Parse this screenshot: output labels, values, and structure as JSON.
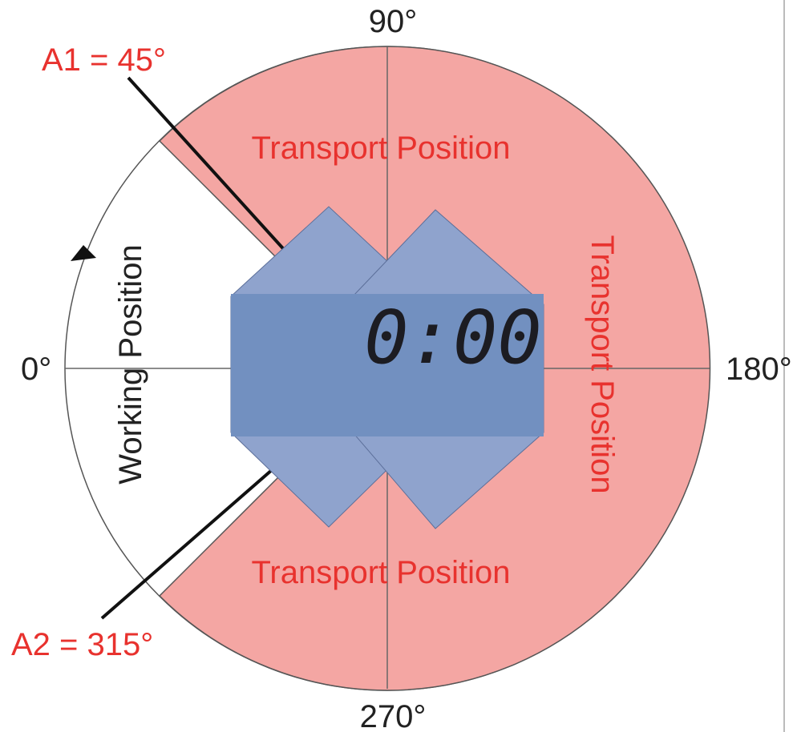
{
  "axis_labels": {
    "top": "90°",
    "right": "180°",
    "bottom": "270°",
    "left": "0°"
  },
  "limits": {
    "a1": "A1 = 45°",
    "a2": "A2 = 315°"
  },
  "zones": {
    "transport_top": "Transport Position",
    "transport_right": "Transport Position",
    "transport_bottom": "Transport Position",
    "working": "Working Position"
  },
  "display": {
    "time": "0:00"
  }
}
